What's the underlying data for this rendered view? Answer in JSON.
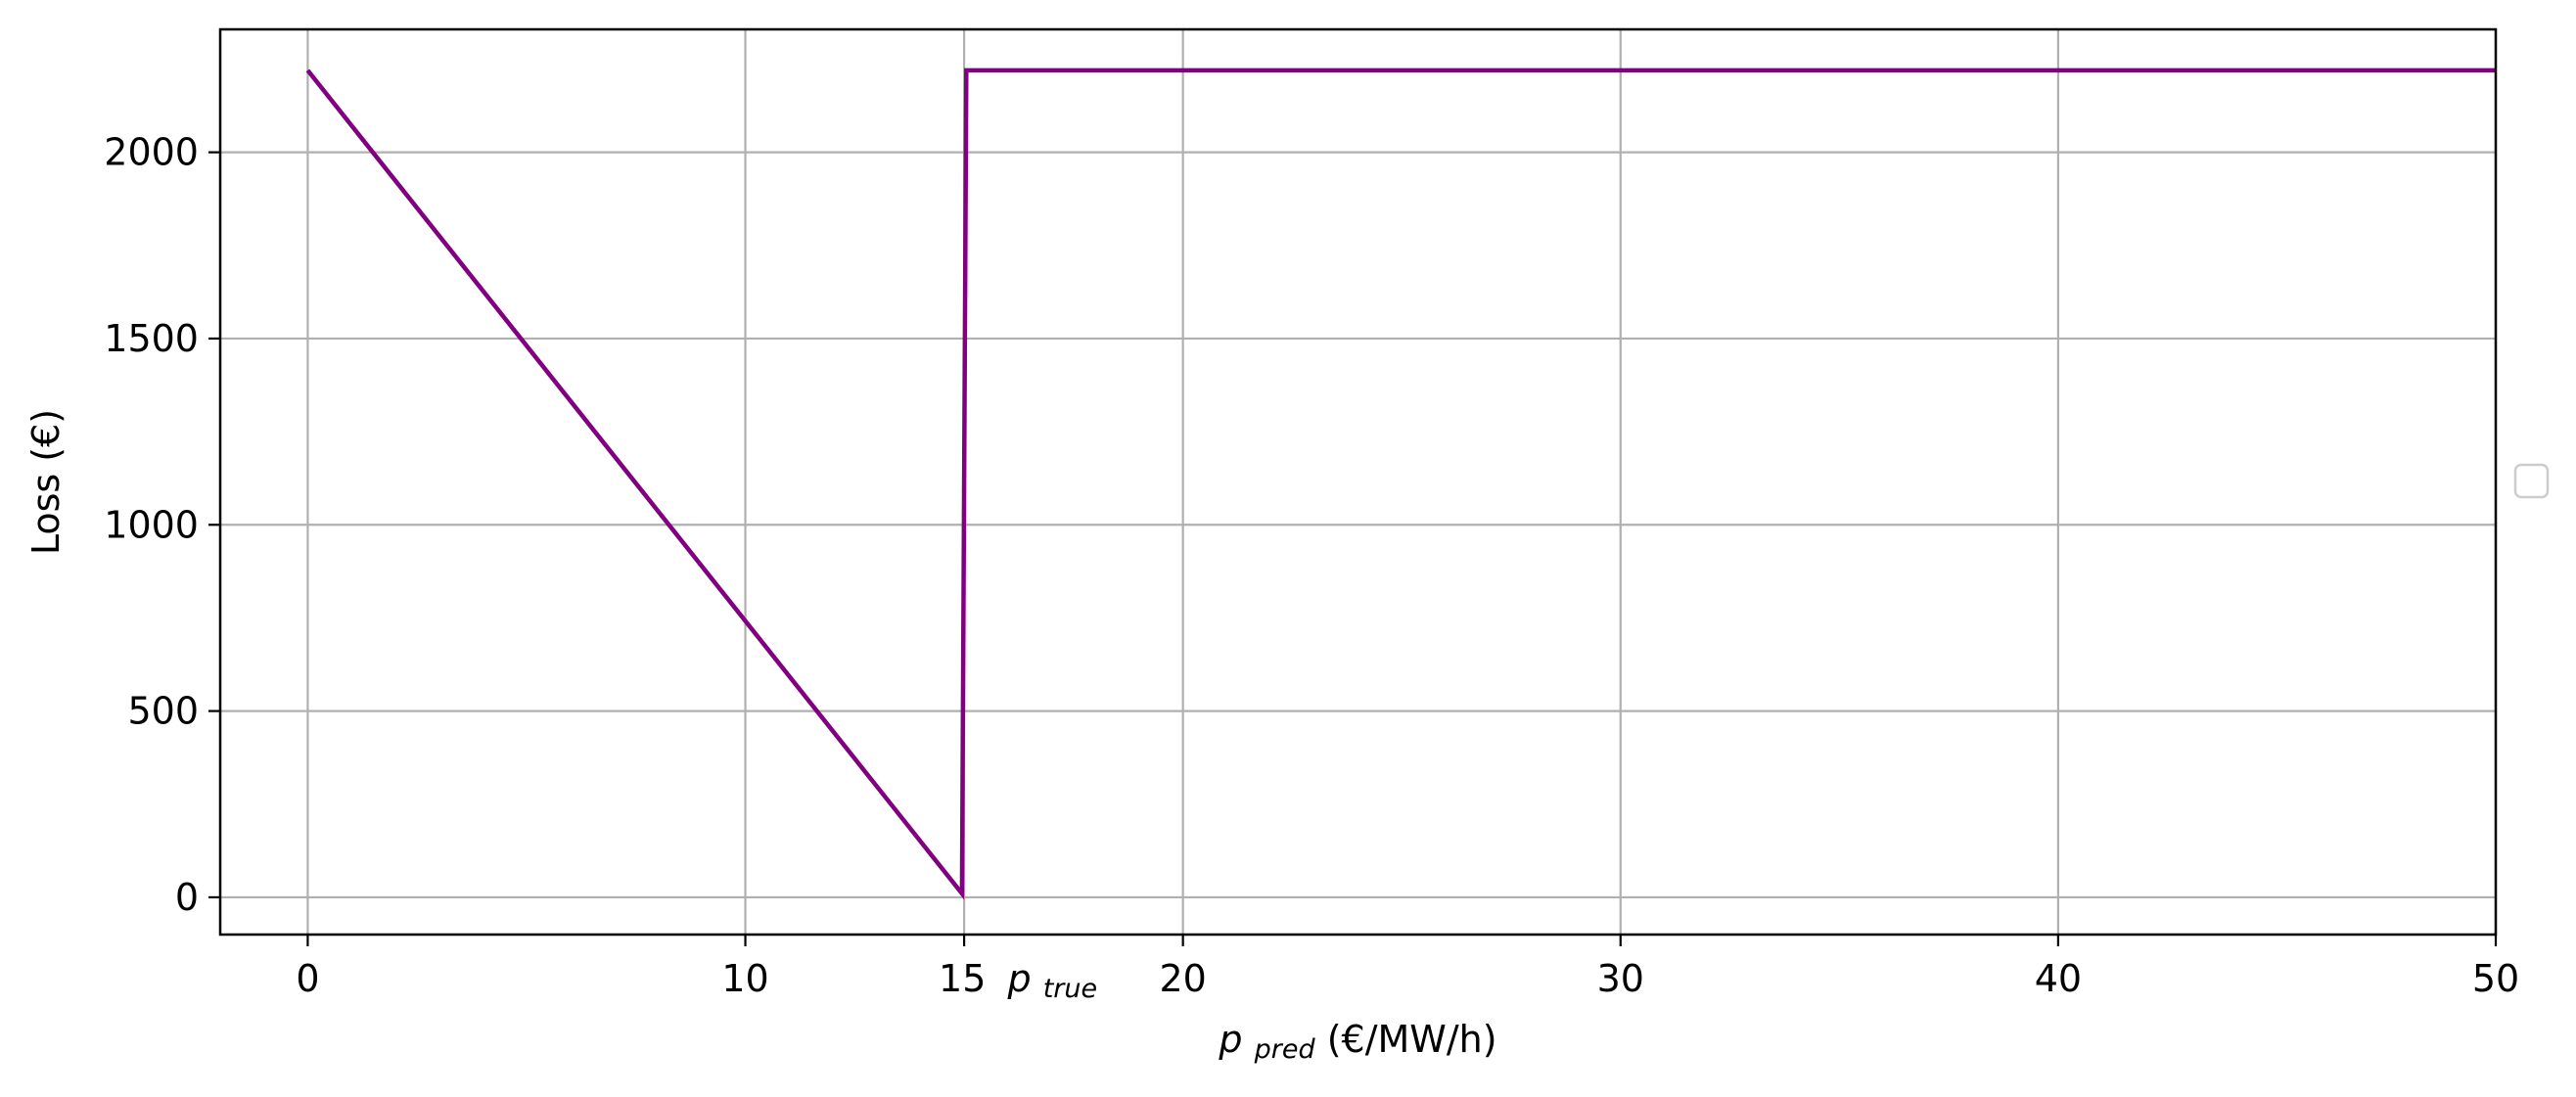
{
  "chart_data": {
    "type": "line",
    "xlabel": {
      "main": "p",
      "sub": "pred",
      "unit": " (€/MW/h)"
    },
    "ylabel": "Loss (€)",
    "xlim": [
      -2,
      50
    ],
    "ylim": [
      -100,
      2330
    ],
    "x_ticks": [
      0,
      10,
      20,
      30,
      40,
      50
    ],
    "y_ticks": [
      0,
      500,
      1000,
      1500,
      2000
    ],
    "grid": true,
    "legend": "right (empty)",
    "series": [
      {
        "color": "#800080",
        "points": [
          [
            0,
            2220
          ],
          [
            14.95,
            10
          ],
          [
            15.05,
            2220
          ],
          [
            50,
            2220
          ]
        ]
      }
    ],
    "annotation": {
      "x": 15,
      "text_value": "15",
      "text_main": "p",
      "text_sub": "true",
      "color": "#ff0000"
    }
  }
}
